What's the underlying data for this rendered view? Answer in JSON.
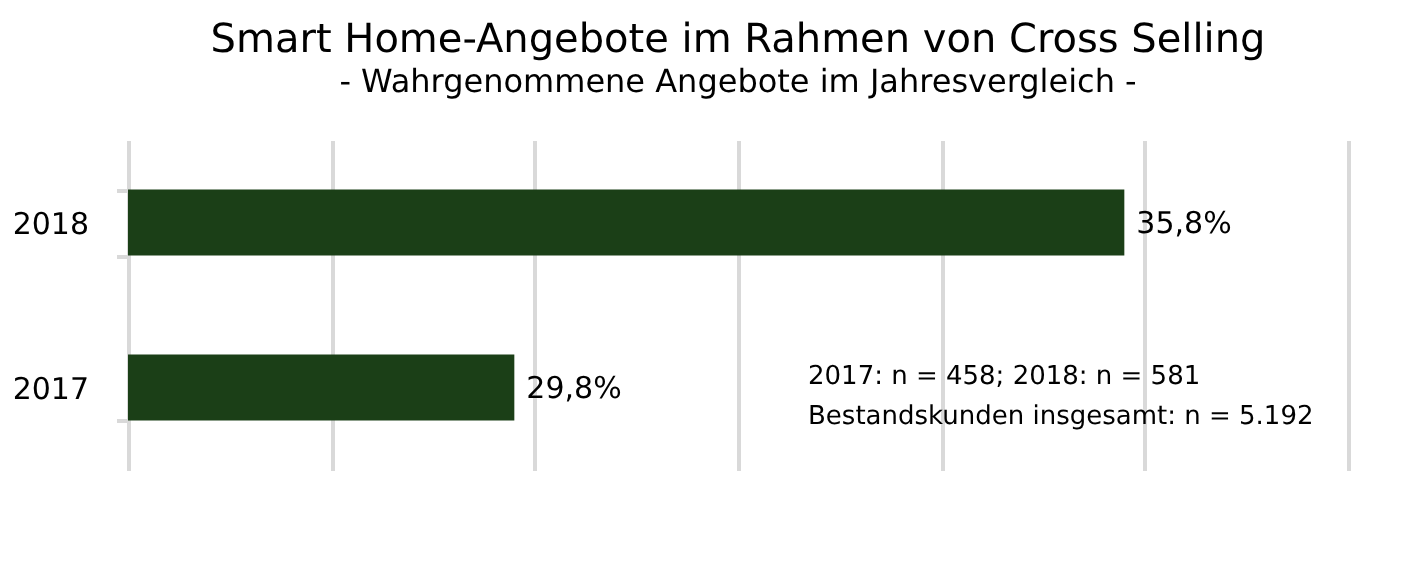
{
  "chart_data": {
    "type": "bar",
    "orientation": "horizontal",
    "title": "Smart Home-Angebote im Rahmen von Cross Selling",
    "subtitle": "- Wahrgenommene Angebote im Jahresvergleich -",
    "categories": [
      "2018",
      "2017"
    ],
    "values": [
      35.8,
      29.8
    ],
    "value_labels": [
      "35,8%",
      "29,8%"
    ],
    "color": "#1b3f17",
    "xlim": [
      26,
      38
    ],
    "xticks": [
      {
        "value": 26,
        "label": null
      },
      {
        "value": 28,
        "label": null
      },
      {
        "value": 30,
        "label": null
      },
      {
        "value": 32,
        "label": null
      },
      {
        "value": 34,
        "label": null
      },
      {
        "value": 36,
        "label": null
      },
      {
        "value": 38,
        "label": null
      }
    ],
    "grid": "x",
    "tick_labels": "y",
    "annotations": [
      "2017: n = 458; 2018: n = 581",
      "Bestandskunden insgesamt: n = 5.192"
    ]
  }
}
